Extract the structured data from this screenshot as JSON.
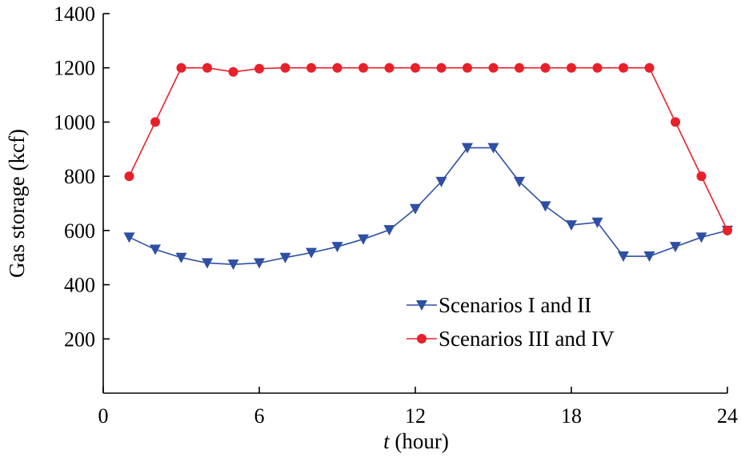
{
  "chart_data": {
    "type": "line",
    "xlabel_italic": "t",
    "xlabel_rest": " (hour)",
    "ylabel": "Gas storage (kcf)",
    "xlim": [
      0,
      24
    ],
    "ylim": [
      0,
      1400
    ],
    "xticks": [
      0,
      6,
      12,
      18,
      24
    ],
    "yticks": [
      200,
      400,
      600,
      800,
      1000,
      1200,
      1400
    ],
    "grid": false,
    "legend_position": "bottom-right",
    "x": [
      1,
      2,
      3,
      4,
      5,
      6,
      7,
      8,
      9,
      10,
      11,
      12,
      13,
      14,
      15,
      16,
      17,
      18,
      19,
      20,
      21,
      22,
      23,
      24
    ],
    "series": [
      {
        "name": "Scenarios I and II",
        "color": "#2e4fa3",
        "marker": "triangle-down",
        "values": [
          575,
          530,
          500,
          480,
          475,
          480,
          500,
          518,
          540,
          568,
          602,
          680,
          780,
          905,
          905,
          780,
          690,
          620,
          630,
          505,
          505,
          540,
          575,
          600
        ]
      },
      {
        "name": "Scenarios III and IV",
        "color": "#e8202a",
        "marker": "circle",
        "values": [
          800,
          1000,
          1200,
          1200,
          1185,
          1197,
          1200,
          1200,
          1200,
          1200,
          1200,
          1200,
          1200,
          1200,
          1200,
          1200,
          1200,
          1200,
          1200,
          1200,
          1200,
          1000,
          800,
          600
        ]
      }
    ]
  }
}
